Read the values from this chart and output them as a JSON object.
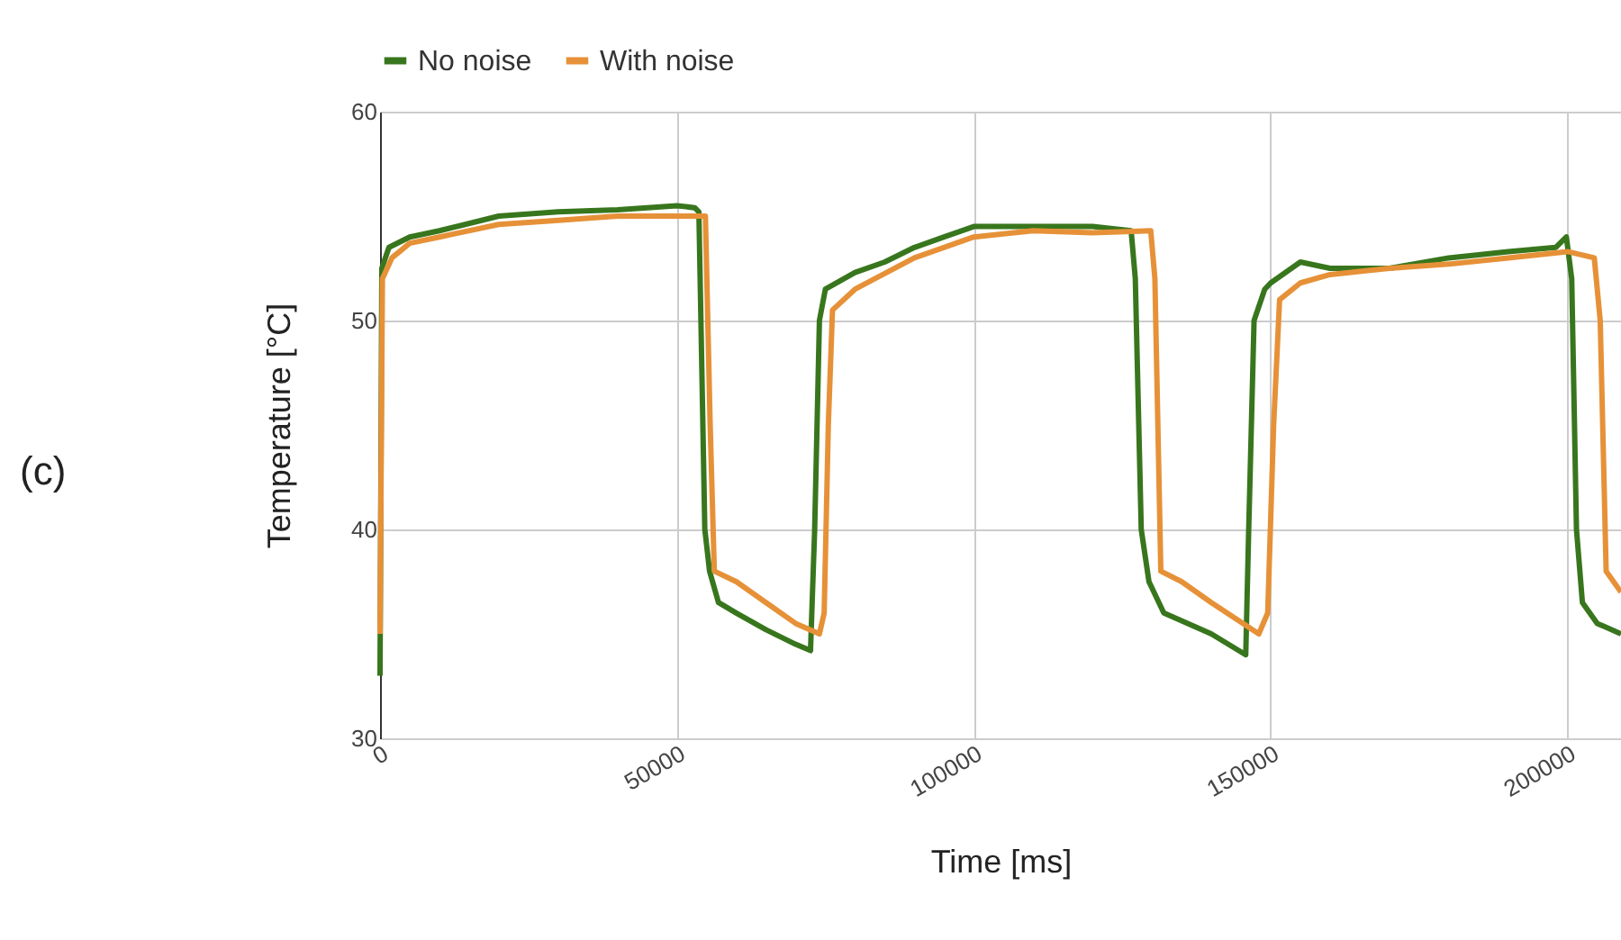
{
  "chart_data": {
    "type": "line",
    "xlabel": "Time [ms]",
    "ylabel": "Temperature [°C]",
    "annotations": [
      "(c)"
    ],
    "xlim": [
      0,
      209000
    ],
    "ylim": [
      30,
      60
    ],
    "xticks": [
      0,
      50000,
      100000,
      150000,
      200000
    ],
    "yticks": [
      30,
      40,
      50,
      60
    ],
    "grid": true,
    "legend": "top",
    "line_style": "solid",
    "marker": "none",
    "series": [
      {
        "name": "No noise",
        "color": "#38761d",
        "x": [
          0,
          300,
          1500,
          5000,
          10000,
          20000,
          30000,
          40000,
          50000,
          53000,
          53700,
          54700,
          55500,
          57000,
          60000,
          65000,
          70000,
          72500,
          73200,
          74000,
          75000,
          80000,
          85000,
          90000,
          95000,
          100000,
          110000,
          120000,
          126500,
          127200,
          128200,
          129500,
          132000,
          140000,
          145800,
          146300,
          147200,
          149000,
          150000,
          155000,
          160000,
          170000,
          180000,
          190000,
          198000,
          199800,
          200700,
          201500,
          202500,
          205000,
          209000
        ],
        "values": [
          33,
          52.5,
          53.5,
          54,
          54.3,
          55,
          55.2,
          55.3,
          55.5,
          55.4,
          55.2,
          40,
          38,
          36.5,
          36,
          35.2,
          34.5,
          34.2,
          40,
          50,
          51.5,
          52.3,
          52.8,
          53.5,
          54,
          54.5,
          54.5,
          54.5,
          54.3,
          52,
          40,
          37.5,
          36,
          35,
          34,
          40,
          50,
          51.5,
          51.8,
          52.8,
          52.5,
          52.5,
          53,
          53.3,
          53.5,
          54,
          52,
          40,
          36.5,
          35.5,
          35
        ]
      },
      {
        "name": "With noise",
        "color": "#e69138",
        "x": [
          0,
          400,
          2000,
          5000,
          10000,
          20000,
          30000,
          40000,
          50000,
          54800,
          55600,
          56300,
          60000,
          65000,
          70000,
          74000,
          74800,
          75500,
          76200,
          80000,
          90000,
          100000,
          110000,
          120000,
          129800,
          130500,
          131500,
          135000,
          140000,
          148000,
          149500,
          150500,
          151500,
          155000,
          160000,
          170000,
          180000,
          190000,
          200000,
          204500,
          205500,
          206500,
          209000
        ],
        "values": [
          35,
          52,
          53,
          53.7,
          54,
          54.6,
          54.8,
          55,
          55,
          55,
          45,
          38,
          37.5,
          36.5,
          35.5,
          35,
          36,
          45,
          50.5,
          51.5,
          53,
          54,
          54.3,
          54.2,
          54.3,
          52,
          38,
          37.5,
          36.5,
          35,
          36,
          45,
          51,
          51.8,
          52.2,
          52.5,
          52.7,
          53,
          53.3,
          53,
          50,
          38,
          37
        ]
      }
    ]
  }
}
